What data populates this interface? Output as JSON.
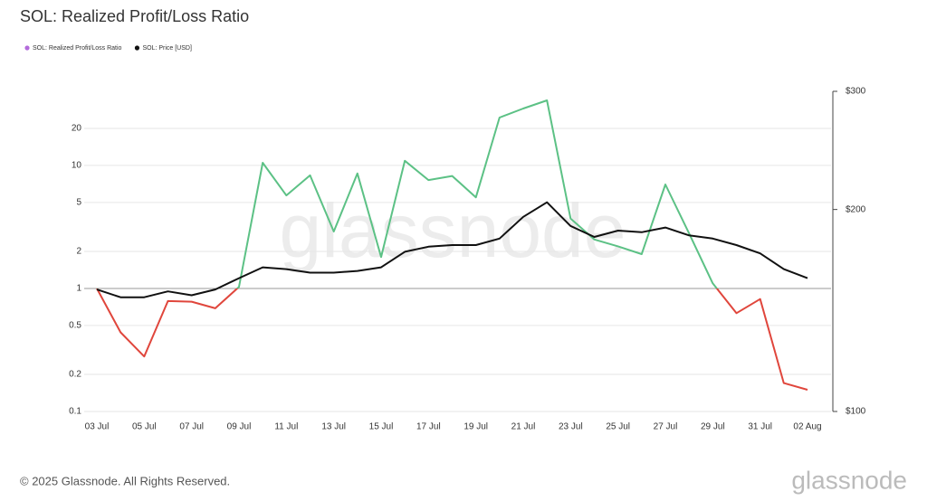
{
  "chart_data": {
    "type": "line",
    "title": "SOL: Realized Profit/Loss Ratio",
    "watermark": "glassnode",
    "footer": "© 2025 Glassnode. All Rights Reserved.",
    "logo": "glassnode",
    "categories": [
      "03 Jul",
      null,
      "05 Jul",
      null,
      "07 Jul",
      null,
      "09 Jul",
      null,
      "11 Jul",
      null,
      "13 Jul",
      null,
      "15 Jul",
      null,
      "17 Jul",
      null,
      "19 Jul",
      null,
      "21 Jul",
      null,
      "23 Jul",
      null,
      "25 Jul",
      null,
      "27 Jul",
      null,
      "29 Jul",
      null,
      "31 Jul",
      null,
      "02 Aug"
    ],
    "series": [
      {
        "name": "SOL: Realized Profit/Loss Ratio",
        "color": "#b36bdb",
        "above_color": "#5cc185",
        "below_color": "#e0463c",
        "values": [
          1.0,
          0.44,
          0.28,
          0.79,
          0.78,
          0.69,
          1.03,
          10.5,
          5.7,
          8.3,
          2.9,
          8.6,
          1.8,
          10.9,
          7.6,
          8.2,
          5.5,
          24.5,
          29,
          33.8,
          3.7,
          2.5,
          2.2,
          1.9,
          7.0,
          2.8,
          1.1,
          0.63,
          0.82,
          0.17,
          0.15
        ]
      },
      {
        "name": "SOL: Price [USD]",
        "color": "#111111",
        "axis": "y2",
        "values": [
          152,
          148,
          148,
          151,
          149,
          152,
          158,
          164,
          163,
          161,
          161,
          162,
          164,
          173,
          176,
          177,
          177,
          181,
          195,
          205,
          189,
          182,
          186,
          185,
          188,
          183,
          181,
          177,
          172,
          163,
          158
        ]
      }
    ],
    "ylim": [
      0.1,
      40
    ],
    "yscale": "log",
    "yticks": [
      0.1,
      0.2,
      0.5,
      1,
      2,
      5,
      10,
      20
    ],
    "y2lim": [
      100,
      300
    ],
    "y2scale": "log",
    "y2ticks": [
      {
        "value": 100,
        "label": "$100"
      },
      {
        "value": 200,
        "label": "$200"
      },
      {
        "value": 300,
        "label": "$300"
      }
    ],
    "reference_value": 1,
    "grid": true
  }
}
